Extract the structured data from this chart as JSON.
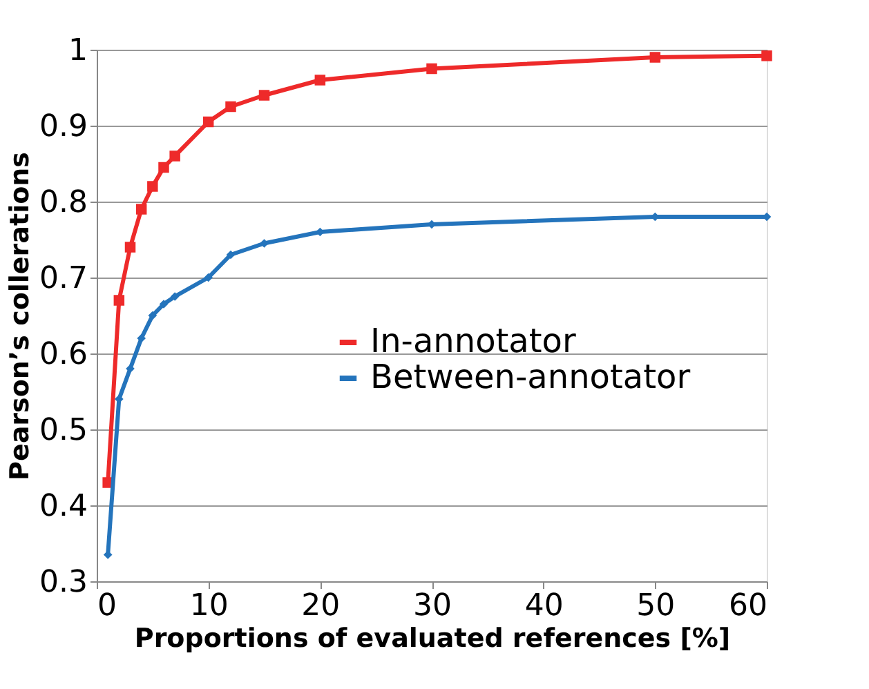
{
  "chart_data": {
    "type": "line",
    "xlabel": "Proportions of evaluated references [%]",
    "ylabel": "Pearson’s collerations",
    "x": [
      1,
      2,
      3,
      4,
      5,
      6,
      7,
      10,
      12,
      15,
      20,
      30,
      50,
      60
    ],
    "series": [
      {
        "name": "In-annotator",
        "color": "#ee2a2a",
        "marker": "square",
        "values": [
          0.43,
          0.67,
          0.74,
          0.79,
          0.82,
          0.845,
          0.86,
          0.905,
          0.925,
          0.94,
          0.96,
          0.975,
          0.99,
          0.992
        ]
      },
      {
        "name": "Between-annotator",
        "color": "#2474bc",
        "marker": "diamond",
        "values": [
          0.335,
          0.54,
          0.58,
          0.62,
          0.65,
          0.665,
          0.675,
          0.7,
          0.73,
          0.745,
          0.76,
          0.77,
          0.78,
          0.78
        ]
      }
    ],
    "xlim": [
      0,
      60
    ],
    "xticks": [
      0,
      10,
      20,
      30,
      40,
      50,
      60
    ],
    "ylim": [
      0.3,
      1
    ],
    "yticks": [
      0.3,
      0.4,
      0.5,
      0.6,
      0.7,
      0.8,
      0.9,
      1
    ],
    "grid": "y",
    "legend": "right",
    "line_style": "solid"
  }
}
